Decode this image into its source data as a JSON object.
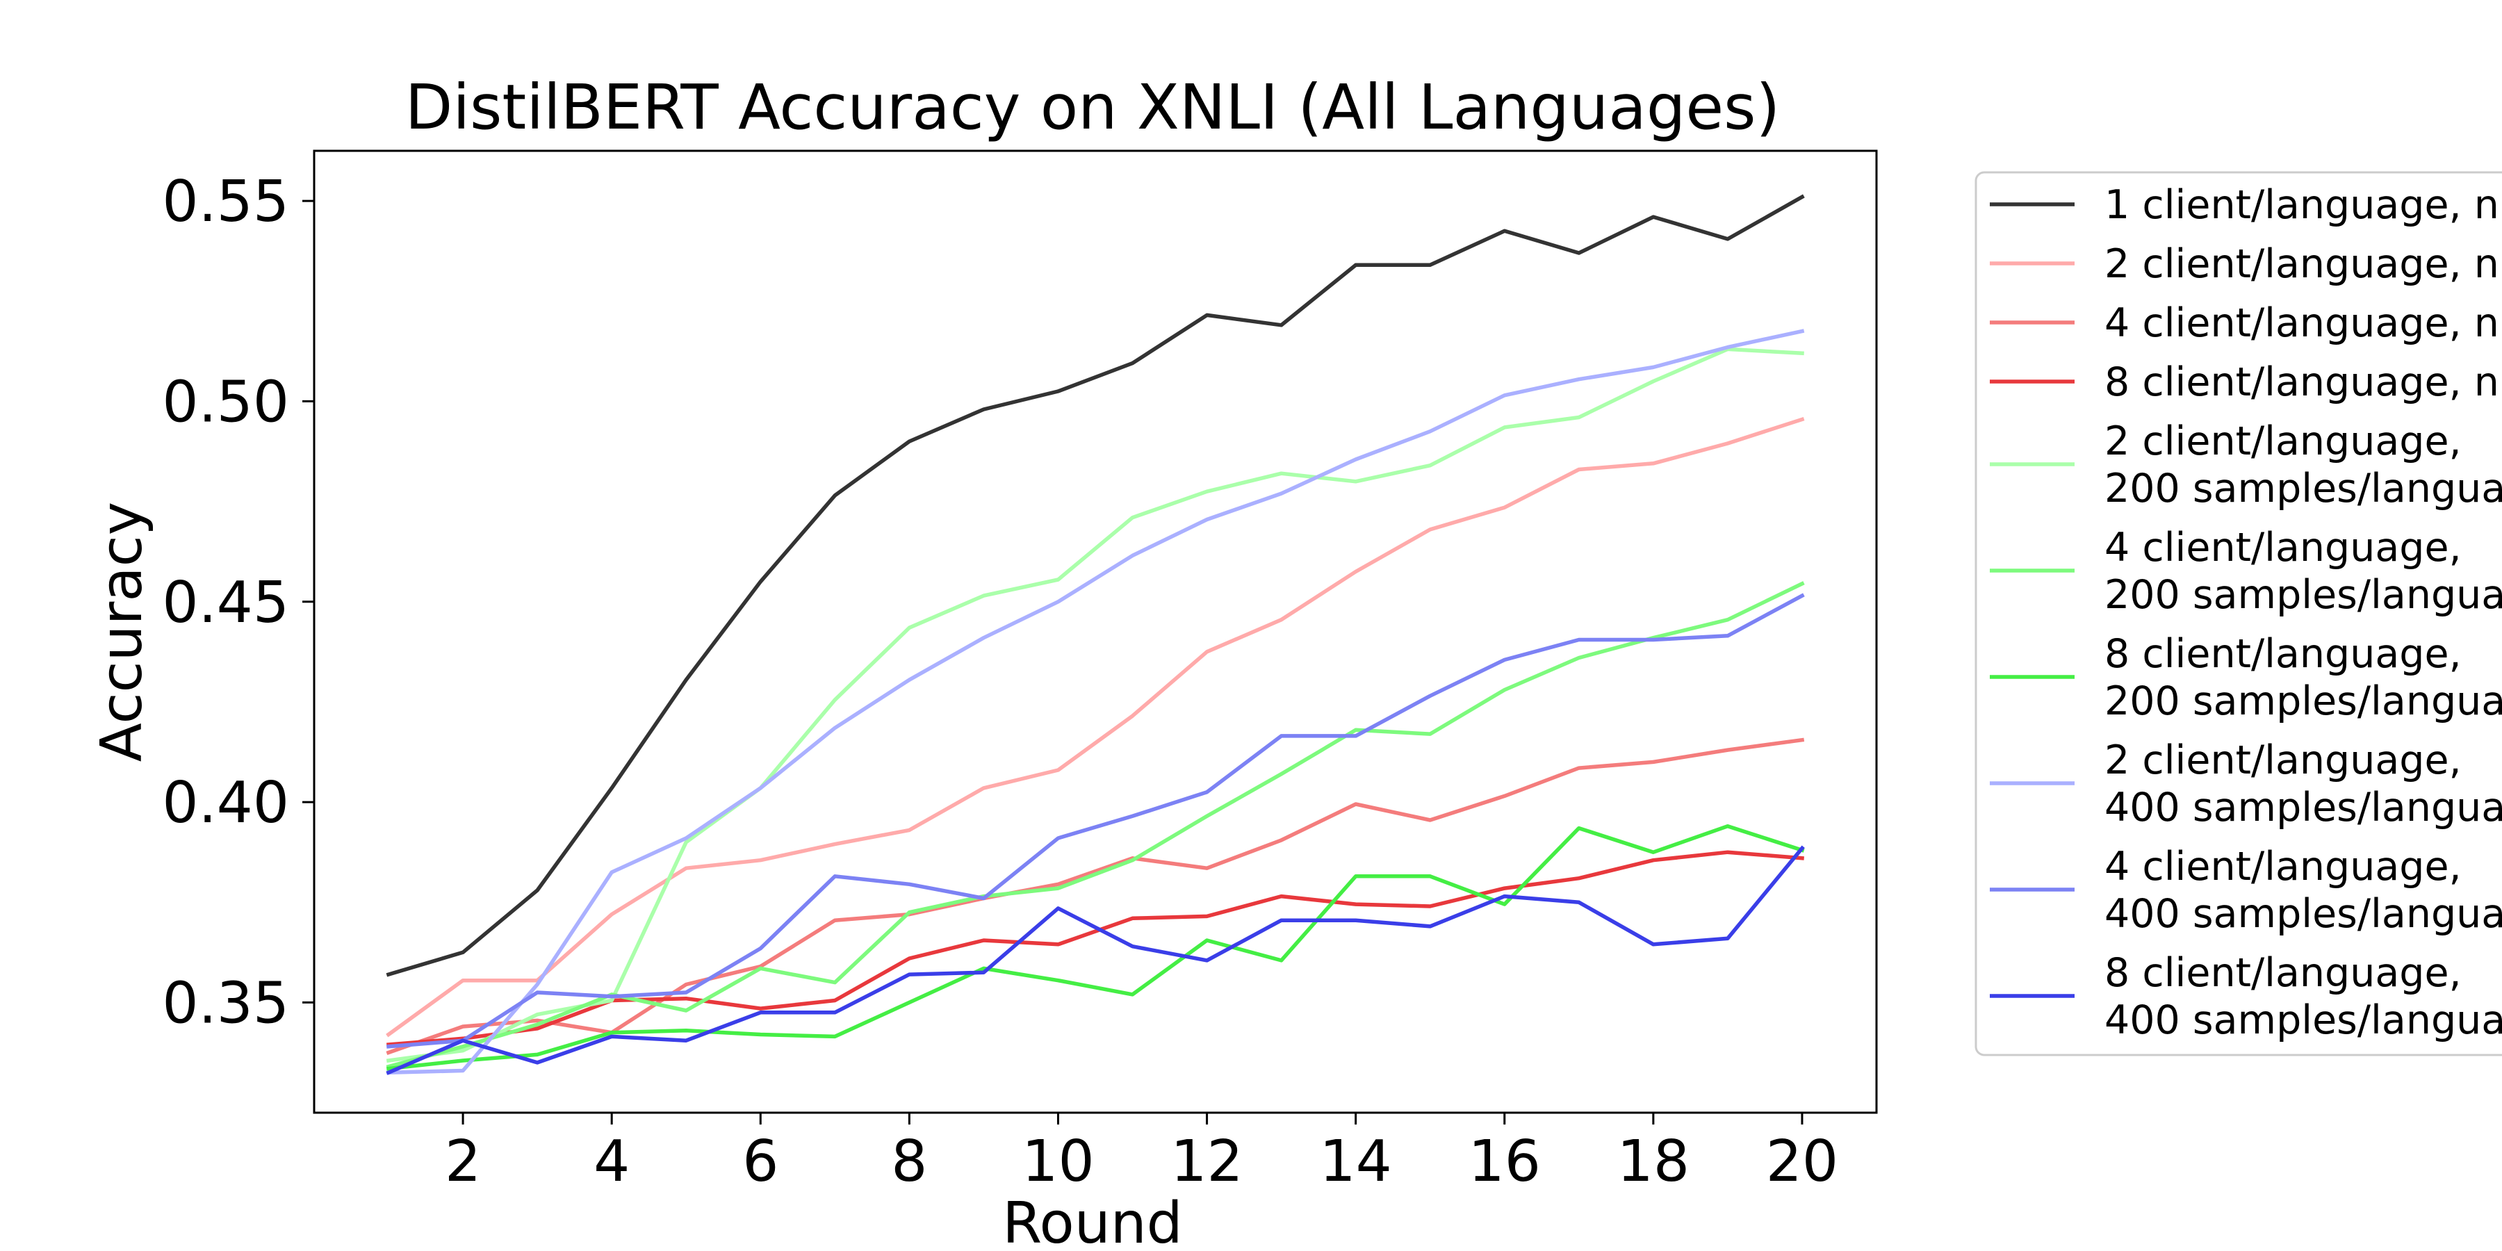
{
  "chart_data": {
    "type": "line",
    "title": "DistilBERT Accuracy on XNLI (All Languages)",
    "xlabel": "Round",
    "ylabel": "Accuracy",
    "xlim": [
      0,
      21
    ],
    "ylim": [
      0.3225,
      0.5625
    ],
    "x": [
      1,
      2,
      3,
      4,
      5,
      6,
      7,
      8,
      9,
      10,
      11,
      12,
      13,
      14,
      15,
      16,
      17,
      18,
      19,
      20
    ],
    "xticks": [
      2,
      4,
      6,
      8,
      10,
      12,
      14,
      16,
      18,
      20
    ],
    "xtick_labels": [
      "2",
      "4",
      "6",
      "8",
      "10",
      "12",
      "14",
      "16",
      "18",
      "20"
    ],
    "yticks": [
      0.35,
      0.4,
      0.45,
      0.5,
      0.55
    ],
    "ytick_labels": [
      "0.35",
      "0.40",
      "0.45",
      "0.50",
      "0.55"
    ],
    "grid": false,
    "legend_position": "outside-right",
    "series": [
      {
        "name": "1 client/language, n",
        "color": "#333333",
        "values": [
          0.357,
          0.3625,
          0.378,
          0.4035,
          0.4305,
          0.455,
          0.4765,
          0.49,
          0.498,
          0.5025,
          0.5095,
          0.5215,
          0.519,
          0.534,
          0.534,
          0.5425,
          0.537,
          0.546,
          0.5405,
          0.551
        ]
      },
      {
        "name": "2 client/language, n",
        "color": "#ffaaaa",
        "values": [
          0.342,
          0.3555,
          0.3555,
          0.372,
          0.3835,
          0.3855,
          0.3895,
          0.393,
          0.4035,
          0.408,
          0.4215,
          0.4375,
          0.4455,
          0.4575,
          0.468,
          0.4735,
          0.483,
          0.4845,
          0.4895,
          0.4955
        ]
      },
      {
        "name": "4 client/language, n",
        "color": "#f47c7c",
        "values": [
          0.3375,
          0.344,
          0.3455,
          0.3425,
          0.3545,
          0.359,
          0.3705,
          0.372,
          0.376,
          0.3795,
          0.386,
          0.3835,
          0.3905,
          0.3995,
          0.3955,
          0.4015,
          0.4085,
          0.41,
          0.413,
          0.4155
        ]
      },
      {
        "name": "8 client/language, n",
        "color": "#e8383c",
        "values": [
          0.3395,
          0.341,
          0.3435,
          0.3505,
          0.351,
          0.3485,
          0.3505,
          0.361,
          0.3655,
          0.3645,
          0.371,
          0.3715,
          0.3765,
          0.3745,
          0.374,
          0.3785,
          0.381,
          0.3855,
          0.3875,
          0.386
        ]
      },
      {
        "name": "2 client/language,\n200 samples/langua",
        "color": "#aaffaa",
        "values": [
          0.3355,
          0.338,
          0.347,
          0.3505,
          0.39,
          0.4035,
          0.4255,
          0.4435,
          0.4515,
          0.4555,
          0.471,
          0.4775,
          0.482,
          0.48,
          0.484,
          0.4935,
          0.496,
          0.505,
          0.513,
          0.512
        ]
      },
      {
        "name": "4 client/language,\n200 samples/langua",
        "color": "#7dfa7d",
        "values": [
          0.334,
          0.339,
          0.3445,
          0.352,
          0.348,
          0.3585,
          0.355,
          0.3725,
          0.3765,
          0.3785,
          0.3855,
          0.3965,
          0.407,
          0.418,
          0.417,
          0.428,
          0.436,
          0.441,
          0.4455,
          0.4545
        ]
      },
      {
        "name": "8 client/language,\n200 samples/langua",
        "color": "#44ee44",
        "values": [
          0.3335,
          0.3355,
          0.337,
          0.3425,
          0.343,
          0.342,
          0.3415,
          0.35,
          0.3585,
          0.3555,
          0.352,
          0.3655,
          0.3605,
          0.3815,
          0.3815,
          0.3745,
          0.3935,
          0.3875,
          0.394,
          0.388
        ]
      },
      {
        "name": "2 client/language,\n400 samples/langua",
        "color": "#aab0ff",
        "values": [
          0.3325,
          0.333,
          0.3545,
          0.3825,
          0.391,
          0.4035,
          0.4185,
          0.4305,
          0.441,
          0.45,
          0.4615,
          0.4705,
          0.477,
          0.4855,
          0.4925,
          0.5015,
          0.5055,
          0.5085,
          0.5135,
          0.5175
        ]
      },
      {
        "name": "4 client/language,\n400 samples/langua",
        "color": "#7c82f4",
        "values": [
          0.339,
          0.3405,
          0.3525,
          0.3515,
          0.3525,
          0.3635,
          0.3815,
          0.3795,
          0.376,
          0.391,
          0.3965,
          0.4025,
          0.4165,
          0.4165,
          0.4265,
          0.4355,
          0.4405,
          0.4405,
          0.4415,
          0.4515
        ]
      },
      {
        "name": "8 client/language,\n400 samples/langua",
        "color": "#3a3ee8",
        "values": [
          0.3325,
          0.3405,
          0.335,
          0.3415,
          0.3405,
          0.3475,
          0.3475,
          0.357,
          0.3575,
          0.3735,
          0.364,
          0.3605,
          0.3705,
          0.3705,
          0.369,
          0.3765,
          0.375,
          0.3645,
          0.366,
          0.3885
        ]
      }
    ]
  }
}
